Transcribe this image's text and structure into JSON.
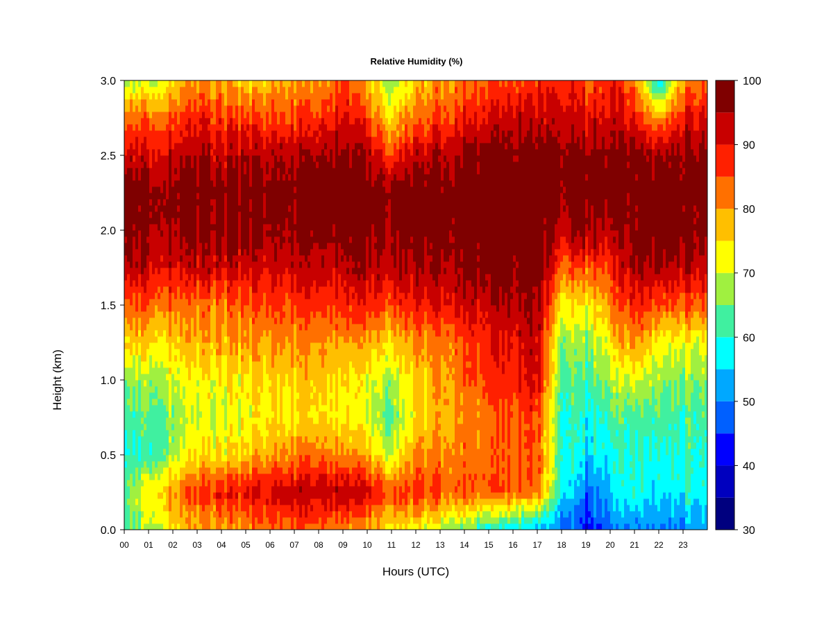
{
  "chart_data": {
    "type": "heatmap",
    "title": "Relative Humidity (%)",
    "xlabel": "Hours (UTC)",
    "ylabel": "Height (km)",
    "xlim": [
      0,
      24
    ],
    "ylim": [
      0.0,
      3.0
    ],
    "x_ticks": [
      "00",
      "01",
      "02",
      "03",
      "04",
      "05",
      "06",
      "07",
      "08",
      "09",
      "10",
      "11",
      "12",
      "13",
      "14",
      "15",
      "16",
      "17",
      "18",
      "19",
      "20",
      "21",
      "22",
      "23"
    ],
    "y_ticks": [
      "0.0",
      "0.5",
      "1.0",
      "1.5",
      "2.0",
      "2.5",
      "3.0"
    ],
    "colorbar": {
      "min": 30,
      "max": 100,
      "tick_labels": [
        "30",
        "40",
        "50",
        "60",
        "70",
        "80",
        "90",
        "100"
      ],
      "levels": [
        {
          "from": 30,
          "to": 35,
          "color": "#00007f"
        },
        {
          "from": 35,
          "to": 40,
          "color": "#0000bf"
        },
        {
          "from": 40,
          "to": 45,
          "color": "#0000ff"
        },
        {
          "from": 45,
          "to": 50,
          "color": "#0060ff"
        },
        {
          "from": 50,
          "to": 55,
          "color": "#00a8ff"
        },
        {
          "from": 55,
          "to": 60,
          "color": "#00ffff"
        },
        {
          "from": 60,
          "to": 65,
          "color": "#40f0a0"
        },
        {
          "from": 65,
          "to": 70,
          "color": "#a0f040"
        },
        {
          "from": 70,
          "to": 75,
          "color": "#ffff00"
        },
        {
          "from": 75,
          "to": 80,
          "color": "#ffbf00"
        },
        {
          "from": 80,
          "to": 85,
          "color": "#ff7000"
        },
        {
          "from": 85,
          "to": 90,
          "color": "#ff2000"
        },
        {
          "from": 90,
          "to": 95,
          "color": "#c80000"
        },
        {
          "from": 95,
          "to": 100,
          "color": "#7f0000"
        }
      ]
    },
    "heights_km": [
      0.0,
      0.25,
      0.5,
      0.75,
      1.0,
      1.25,
      1.5,
      1.75,
      2.0,
      2.25,
      2.5,
      2.75,
      3.0
    ],
    "hours": [
      0,
      1,
      2,
      3,
      4,
      5,
      6,
      7,
      8,
      9,
      10,
      11,
      12,
      13,
      14,
      15,
      16,
      17,
      18,
      19,
      20,
      21,
      22,
      23,
      24
    ],
    "values": [
      [
        60,
        68,
        76,
        78,
        78,
        80,
        83,
        83,
        82,
        80,
        78,
        76,
        72,
        70,
        64,
        58,
        55,
        52,
        50,
        42,
        48,
        52,
        48,
        50,
        55
      ],
      [
        62,
        74,
        82,
        86,
        88,
        90,
        92,
        93,
        93,
        93,
        92,
        85,
        86,
        85,
        84,
        84,
        84,
        82,
        60,
        48,
        55,
        60,
        55,
        58,
        60
      ],
      [
        58,
        62,
        70,
        74,
        74,
        76,
        80,
        82,
        82,
        80,
        78,
        70,
        80,
        82,
        82,
        82,
        84,
        84,
        62,
        56,
        58,
        62,
        58,
        60,
        62
      ],
      [
        60,
        64,
        68,
        70,
        70,
        72,
        74,
        74,
        74,
        72,
        70,
        64,
        74,
        78,
        80,
        82,
        84,
        85,
        62,
        58,
        62,
        64,
        62,
        62,
        64
      ],
      [
        64,
        68,
        72,
        72,
        72,
        74,
        76,
        76,
        76,
        74,
        72,
        68,
        76,
        80,
        83,
        86,
        88,
        92,
        64,
        62,
        68,
        72,
        66,
        66,
        68
      ],
      [
        74,
        76,
        78,
        78,
        78,
        80,
        80,
        80,
        80,
        78,
        78,
        76,
        80,
        82,
        85,
        88,
        90,
        92,
        68,
        66,
        74,
        82,
        72,
        72,
        74
      ],
      [
        82,
        84,
        84,
        82,
        82,
        84,
        86,
        86,
        86,
        86,
        88,
        86,
        88,
        90,
        92,
        92,
        94,
        95,
        76,
        72,
        82,
        90,
        84,
        84,
        86
      ],
      [
        92,
        93,
        93,
        92,
        92,
        92,
        92,
        92,
        92,
        92,
        94,
        94,
        94,
        95,
        96,
        97,
        98,
        98,
        86,
        85,
        88,
        96,
        94,
        94,
        94
      ],
      [
        96,
        97,
        97,
        96,
        96,
        97,
        96,
        96,
        96,
        97,
        97,
        97,
        98,
        98,
        98,
        99,
        99,
        99,
        94,
        96,
        94,
        98,
        98,
        98,
        98
      ],
      [
        98,
        98,
        99,
        98,
        98,
        98,
        98,
        98,
        98,
        99,
        99,
        98,
        99,
        99,
        99,
        99,
        99,
        99,
        99,
        99,
        99,
        99,
        99,
        99,
        99
      ],
      [
        90,
        92,
        94,
        94,
        92,
        94,
        94,
        94,
        94,
        96,
        94,
        86,
        92,
        94,
        96,
        97,
        98,
        98,
        98,
        97,
        98,
        98,
        95,
        98,
        98
      ],
      [
        82,
        84,
        86,
        88,
        86,
        86,
        86,
        86,
        86,
        90,
        86,
        76,
        82,
        86,
        88,
        90,
        92,
        92,
        94,
        90,
        92,
        90,
        78,
        90,
        92
      ],
      [
        66,
        70,
        76,
        80,
        78,
        76,
        78,
        80,
        78,
        84,
        78,
        66,
        76,
        80,
        82,
        84,
        86,
        86,
        90,
        84,
        88,
        84,
        55,
        80,
        86
      ]
    ]
  }
}
